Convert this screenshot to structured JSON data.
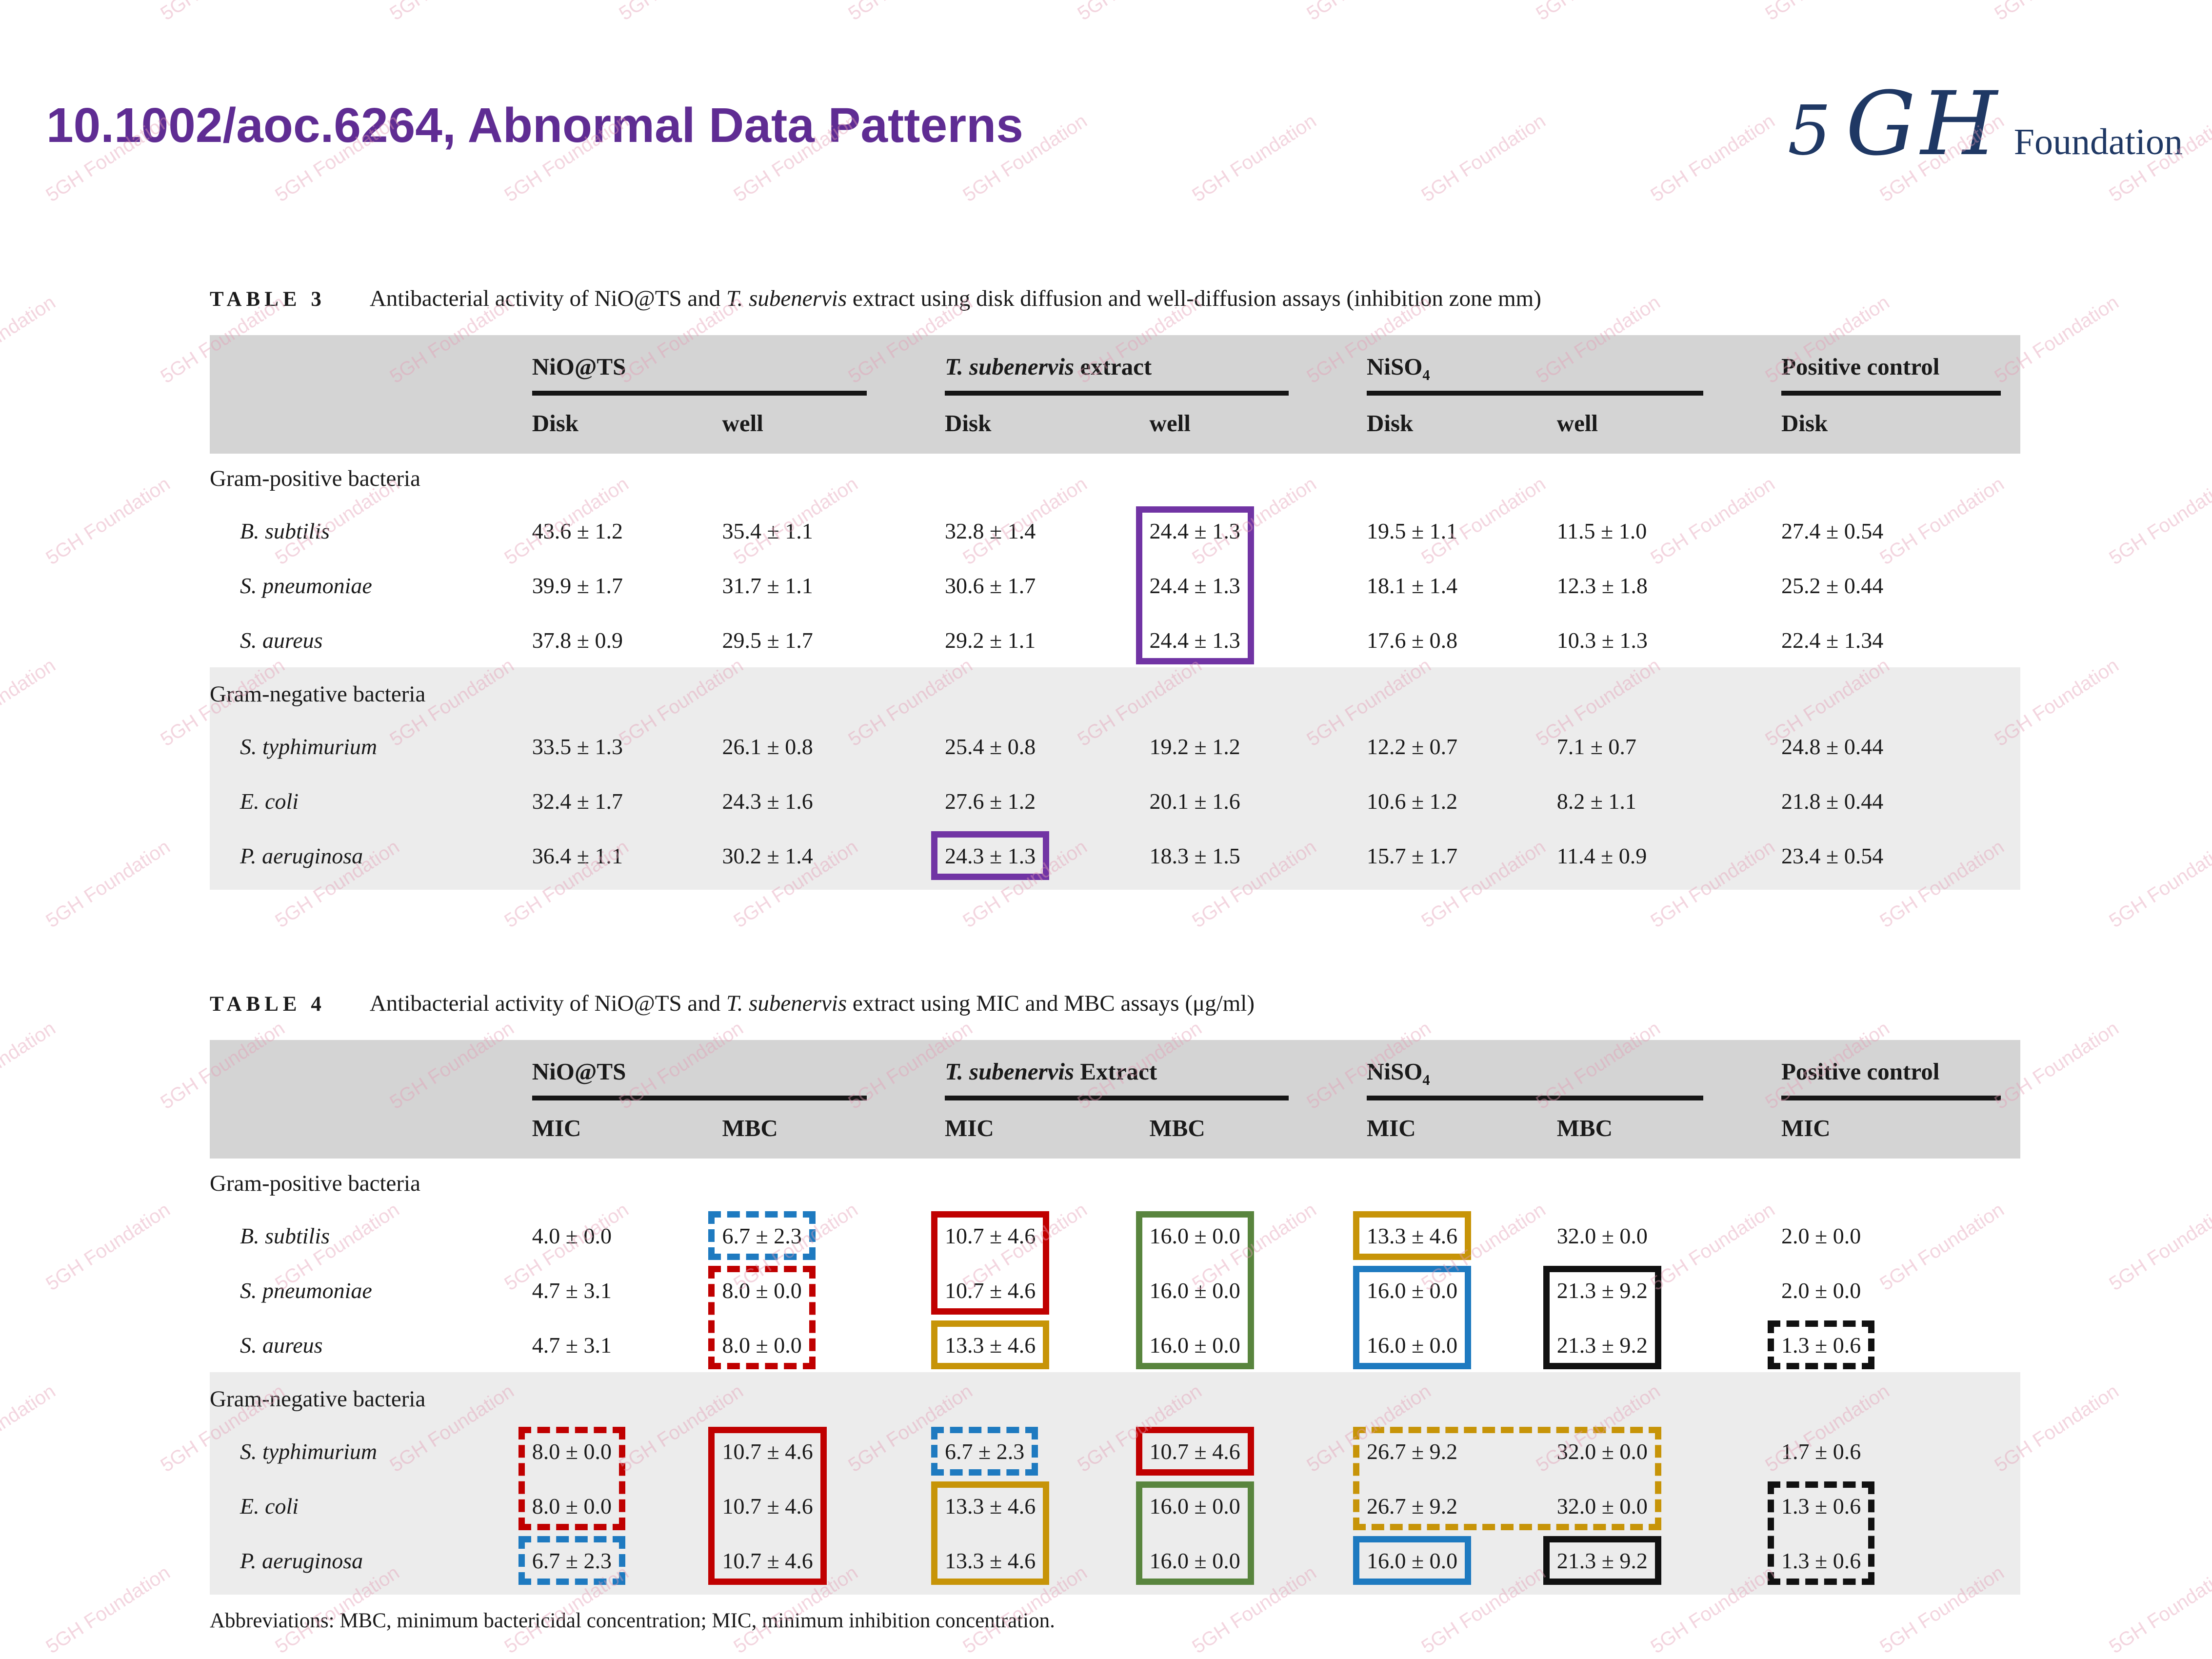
{
  "header": {
    "title": "10.1002/aoc.6264, Abnormal Data Patterns"
  },
  "logo": {
    "digit": "5",
    "letter_g": "G",
    "letter_h": "H",
    "word": "Foundation"
  },
  "watermark": {
    "text": "5GH Foundation"
  },
  "colors": {
    "purple": "#7134A4",
    "red": "#C00000",
    "blue": "#1E7AC0",
    "green": "#59853E",
    "gold": "#C79408",
    "black": "#111111",
    "title": "#5F2C93",
    "logo_navy": "#1F3864",
    "header_band": "#D4D4D4",
    "shaded_section": "#ECECEC"
  },
  "footnote": {
    "text": "Abbreviations: MBC, minimum bactericidal concentration; MIC, minimum inhibition concentration."
  },
  "tables": [
    {
      "id": "t3",
      "label": "TABLE 3",
      "caption": [
        [
          "Antibacterial activity of NiO@TS and ",
          ""
        ],
        [
          "T. subenervis",
          "i"
        ],
        [
          " extract using disk diffusion and well-diffusion assays (inhibition zone mm)",
          ""
        ]
      ],
      "groups": [
        {
          "segs": [
            [
              "NiO@TS",
              ""
            ]
          ],
          "span": 2
        },
        {
          "segs": [
            [
              "T. subenervis",
              "i"
            ],
            [
              " extract",
              ""
            ]
          ],
          "span": 2
        },
        {
          "segs": [
            [
              "NiSO",
              ""
            ],
            [
              "4",
              "sub"
            ]
          ],
          "span": 2
        },
        {
          "segs": [
            [
              "Positive control",
              ""
            ]
          ],
          "span": 1
        }
      ],
      "subheaders": [
        "Disk",
        "well",
        "Disk",
        "well",
        "Disk",
        "well",
        "Disk"
      ],
      "sections": [
        {
          "label": "Gram-positive bacteria",
          "shaded": false,
          "rows": [
            {
              "species": "B. subtilis",
              "values": [
                "43.6 ± 1.2",
                "35.4 ± 1.1",
                "32.8 ± 1.4",
                "24.4 ± 1.3",
                "19.5 ± 1.1",
                "11.5 ± 1.0",
                "27.4 ± 0.54"
              ]
            },
            {
              "species": "S. pneumoniae",
              "values": [
                "39.9 ± 1.7",
                "31.7 ± 1.1",
                "30.6 ± 1.7",
                "24.4 ± 1.3",
                "18.1 ± 1.4",
                "12.3 ± 1.8",
                "25.2 ± 0.44"
              ]
            },
            {
              "species": "S. aureus",
              "values": [
                "37.8 ± 0.9",
                "29.5 ± 1.7",
                "29.2 ± 1.1",
                "24.4 ± 1.3",
                "17.6 ± 0.8",
                "10.3 ± 1.3",
                "22.4 ± 1.34"
              ]
            }
          ]
        },
        {
          "label": "Gram-negative bacteria",
          "shaded": true,
          "rows": [
            {
              "species": "S. typhimurium",
              "values": [
                "33.5 ± 1.3",
                "26.1 ± 0.8",
                "25.4 ± 0.8",
                "19.2 ± 1.2",
                "12.2 ± 0.7",
                "7.1 ± 0.7",
                "24.8 ± 0.44"
              ]
            },
            {
              "species": "E. coli",
              "values": [
                "32.4 ± 1.7",
                "24.3 ± 1.6",
                "27.6 ± 1.2",
                "20.1 ± 1.6",
                "10.6 ± 1.2",
                "8.2 ± 1.1",
                "21.8 ± 0.44"
              ]
            },
            {
              "species": "P. aeruginosa",
              "values": [
                "36.4 ± 1.1",
                "30.2 ± 1.4",
                "24.3 ± 1.3",
                "18.3 ± 1.5",
                "15.7 ± 1.7",
                "11.4 ± 0.9",
                "23.4 ± 0.54"
              ]
            }
          ]
        }
      ],
      "boxes": [
        {
          "color": "purple",
          "dash": false,
          "r0": 0,
          "r1": 2,
          "c0": 4,
          "c1": 4
        },
        {
          "color": "purple",
          "dash": false,
          "r0": 5,
          "r1": 5,
          "c0": 3,
          "c1": 3
        }
      ]
    },
    {
      "id": "t4",
      "label": "TABLE 4",
      "caption": [
        [
          "Antibacterial activity of NiO@TS and ",
          ""
        ],
        [
          "T. subenervis",
          "i"
        ],
        [
          " extract using MIC and MBC assays (μg/ml)",
          ""
        ]
      ],
      "groups": [
        {
          "segs": [
            [
              "NiO@TS",
              ""
            ]
          ],
          "span": 2
        },
        {
          "segs": [
            [
              "T. subenervis",
              "i"
            ],
            [
              " Extract",
              ""
            ]
          ],
          "span": 2
        },
        {
          "segs": [
            [
              "NiSO",
              ""
            ],
            [
              "4",
              "sub"
            ]
          ],
          "span": 2
        },
        {
          "segs": [
            [
              "Positive control",
              ""
            ]
          ],
          "span": 1
        }
      ],
      "subheaders": [
        "MIC",
        "MBC",
        "MIC",
        "MBC",
        "MIC",
        "MBC",
        "MIC"
      ],
      "sections": [
        {
          "label": "Gram-positive bacteria",
          "shaded": false,
          "rows": [
            {
              "species": "B. subtilis",
              "values": [
                "4.0 ± 0.0",
                "6.7 ± 2.3",
                "10.7 ± 4.6",
                "16.0 ± 0.0",
                "13.3 ± 4.6",
                "32.0 ± 0.0",
                "2.0 ± 0.0"
              ]
            },
            {
              "species": "S. pneumoniae",
              "values": [
                "4.7 ± 3.1",
                "8.0 ± 0.0",
                "10.7 ± 4.6",
                "16.0 ± 0.0",
                "16.0 ± 0.0",
                "21.3 ± 9.2",
                "2.0 ± 0.0"
              ]
            },
            {
              "species": "S. aureus",
              "values": [
                "4.7 ± 3.1",
                "8.0 ± 0.0",
                "13.3 ± 4.6",
                "16.0 ± 0.0",
                "16.0 ± 0.0",
                "21.3 ± 9.2",
                "1.3 ± 0.6"
              ]
            }
          ]
        },
        {
          "label": "Gram-negative bacteria",
          "shaded": true,
          "rows": [
            {
              "species": "S. typhimurium",
              "values": [
                "8.0 ± 0.0",
                "10.7 ± 4.6",
                "6.7 ± 2.3",
                "10.7 ± 4.6",
                "26.7 ± 9.2",
                "32.0 ± 0.0",
                "1.7 ± 0.6"
              ]
            },
            {
              "species": "E. coli",
              "values": [
                "8.0 ± 0.0",
                "10.7 ± 4.6",
                "13.3 ± 4.6",
                "16.0 ± 0.0",
                "26.7 ± 9.2",
                "32.0 ± 0.0",
                "1.3 ± 0.6"
              ]
            },
            {
              "species": "P. aeruginosa",
              "values": [
                "6.7 ± 2.3",
                "10.7 ± 4.6",
                "13.3 ± 4.6",
                "16.0 ± 0.0",
                "16.0 ± 0.0",
                "21.3 ± 9.2",
                "1.3 ± 0.6"
              ]
            }
          ]
        }
      ],
      "boxes": [
        {
          "color": "blue",
          "dash": true,
          "r0": 0,
          "r1": 0,
          "c0": 2,
          "c1": 2
        },
        {
          "color": "red",
          "dash": true,
          "r0": 1,
          "r1": 2,
          "c0": 2,
          "c1": 2
        },
        {
          "color": "red",
          "dash": false,
          "r0": 0,
          "r1": 1,
          "c0": 3,
          "c1": 3
        },
        {
          "color": "gold",
          "dash": false,
          "r0": 2,
          "r1": 2,
          "c0": 3,
          "c1": 3
        },
        {
          "color": "green",
          "dash": false,
          "r0": 0,
          "r1": 2,
          "c0": 4,
          "c1": 4
        },
        {
          "color": "gold",
          "dash": false,
          "r0": 0,
          "r1": 0,
          "c0": 5,
          "c1": 5
        },
        {
          "color": "blue",
          "dash": false,
          "r0": 1,
          "r1": 2,
          "c0": 5,
          "c1": 5
        },
        {
          "color": "black",
          "dash": false,
          "r0": 1,
          "r1": 2,
          "c0": 6,
          "c1": 6
        },
        {
          "color": "black",
          "dash": true,
          "r0": 2,
          "r1": 2,
          "c0": 7,
          "c1": 7
        },
        {
          "color": "red",
          "dash": true,
          "r0": 3,
          "r1": 4,
          "c0": 1,
          "c1": 1
        },
        {
          "color": "blue",
          "dash": true,
          "r0": 5,
          "r1": 5,
          "c0": 1,
          "c1": 1
        },
        {
          "color": "red",
          "dash": false,
          "r0": 3,
          "r1": 5,
          "c0": 2,
          "c1": 2
        },
        {
          "color": "blue",
          "dash": true,
          "r0": 3,
          "r1": 3,
          "c0": 3,
          "c1": 3
        },
        {
          "color": "gold",
          "dash": false,
          "r0": 4,
          "r1": 5,
          "c0": 3,
          "c1": 3
        },
        {
          "color": "red",
          "dash": false,
          "r0": 3,
          "r1": 3,
          "c0": 4,
          "c1": 4
        },
        {
          "color": "green",
          "dash": false,
          "r0": 4,
          "r1": 5,
          "c0": 4,
          "c1": 4
        },
        {
          "color": "gold",
          "dash": true,
          "r0": 3,
          "r1": 4,
          "c0": 5,
          "c1": 6
        },
        {
          "color": "blue",
          "dash": false,
          "r0": 5,
          "r1": 5,
          "c0": 5,
          "c1": 5
        },
        {
          "color": "black",
          "dash": false,
          "r0": 5,
          "r1": 5,
          "c0": 6,
          "c1": 6
        },
        {
          "color": "black",
          "dash": true,
          "r0": 4,
          "r1": 5,
          "c0": 7,
          "c1": 7
        }
      ]
    }
  ]
}
